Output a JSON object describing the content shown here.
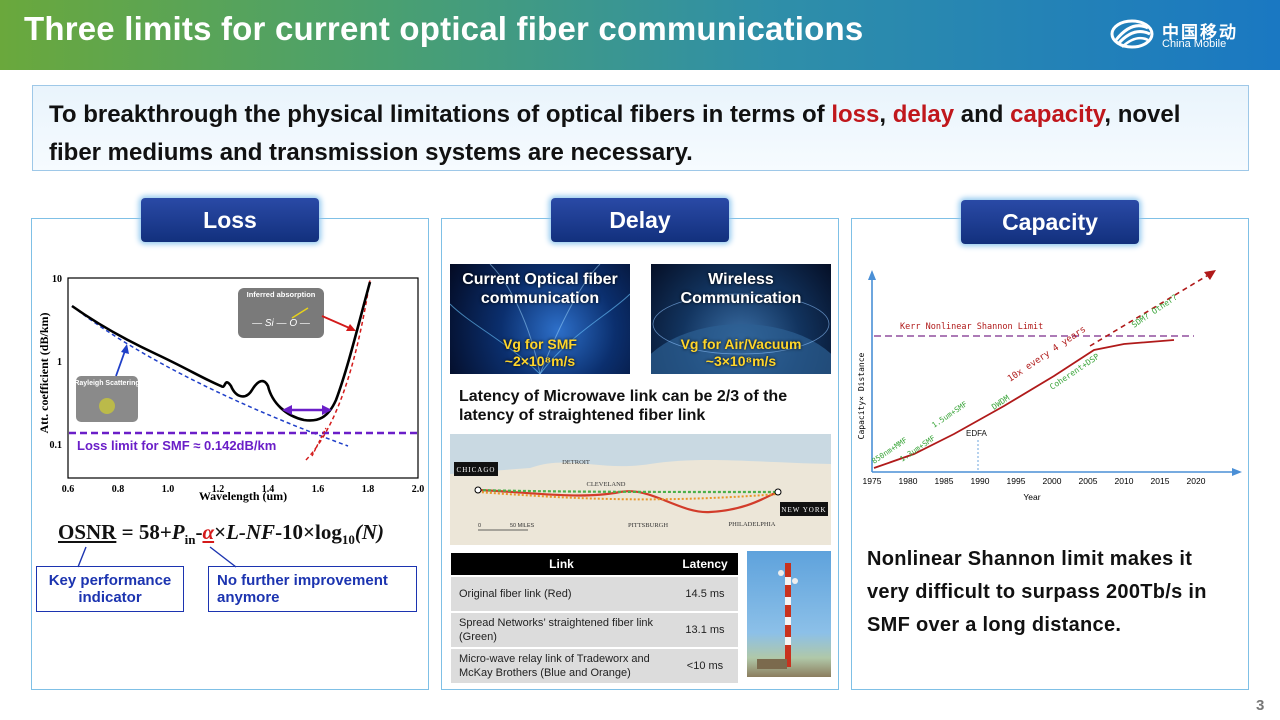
{
  "header": {
    "title": "Three limits for current optical fiber communications",
    "logo_cn": "中国移动",
    "logo_en": "China Mobile"
  },
  "intro": {
    "part1": "To breakthrough the physical limitations of optical fibers in terms of ",
    "loss": "loss",
    "sep1": ", ",
    "delay": "delay",
    "sep2": " and ",
    "capacity": "capacity",
    "part2": ", novel fiber mediums and transmission systems are necessary."
  },
  "colors": {
    "accent_red": "#c0171c",
    "pill_blue": "#12307d",
    "panel_border": "#7fc0e6"
  },
  "loss": {
    "heading": "Loss",
    "chart": {
      "ylabel": "Att. coefficient (dB/km)",
      "xlabel": "Wavelength (um)",
      "yticks": [
        "10",
        "1",
        "0.1"
      ],
      "xticks": [
        "0.6",
        "0.8",
        "1.0",
        "1.2",
        "1.4",
        "1.6",
        "1.8",
        "2.0"
      ],
      "annot_absorption": "Inferred absorption",
      "annot_rayleigh": "Rayleigh Scattering",
      "loss_limit": "Loss limit for SMF ≈ 0.142dB/km"
    },
    "osnr_label": "OSNR",
    "osnr_pre": " = 58+",
    "osnr_p": "P",
    "osnr_in": "in",
    "osnr_dash": "-",
    "osnr_alpha": "α",
    "osnr_mid": "×",
    "osnr_L": "L",
    "osnr_nf": "-NF",
    "osnr_tail": "-10×log",
    "osnr_sub10": "10",
    "osnr_N": "(N)",
    "kpi": "Key performance indicator",
    "no_improve": "No further improvement anymore"
  },
  "delay": {
    "heading": "Delay",
    "tile1_title": "Current Optical fiber communication",
    "tile1_sub": "Vg for SMF ~2×10⁸m/s",
    "tile2_title": "Wireless Communication",
    "tile2_sub": "Vg for Air/Vacuum ~3×10⁸m/s",
    "statement": "Latency of Microwave link can be 2/3 of the latency of straightened fiber link",
    "map": {
      "chicago": "CHICAGO",
      "detroit": "DETROIT",
      "cleveland": "CLEVELAND",
      "pittsburgh": "PITTSBURGH",
      "philadelphia": "PHILADELPHIA",
      "new_york": "NEW YORK",
      "scale_0": "0",
      "scale_50": "50 MILES"
    },
    "table": {
      "headers": [
        "Link",
        "Latency"
      ],
      "rows": [
        [
          "Original fiber link (Red)",
          "14.5 ms"
        ],
        [
          "Spread Networks’ straightened fiber link (Green)",
          "13.1 ms"
        ],
        [
          "Micro-wave relay link of Tradeworx and McKay Brothers (Blue and Orange)",
          "<10 ms"
        ]
      ]
    }
  },
  "capacity": {
    "heading": "Capacity",
    "chart": {
      "ylabel": "Capacity× Distance",
      "xlabel": "Year",
      "xticks": [
        "1975",
        "1980",
        "1985",
        "1990",
        "1995",
        "2000",
        "2005",
        "2010",
        "2015",
        "2020"
      ],
      "kerr": "Kerr Nonlinear Shannon Limit",
      "sdm": "SDM? Other?",
      "growth": "10x every 4 years",
      "coherent": "Coherent+DSP",
      "dwdm": "DWDM",
      "edfa": "EDFA",
      "l15": "1.5um+SMF",
      "l13": "1.3um+SMF",
      "l850": "850nm+MMF"
    },
    "statement": "Nonlinear Shannon limit makes it very difficult to surpass 200Tb/s in SMF over a long distance."
  },
  "page_number": "3"
}
